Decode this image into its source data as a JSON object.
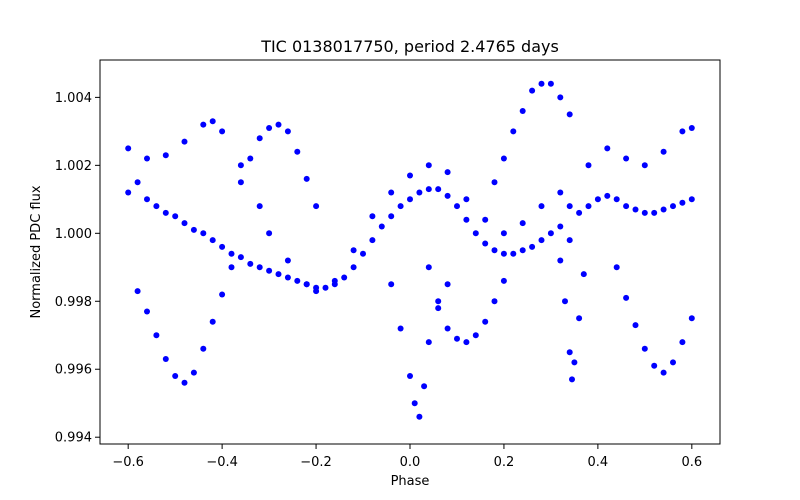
{
  "chart_data": {
    "type": "scatter",
    "title": "TIC 0138017750, period 2.4765 days",
    "xlabel": "Phase",
    "ylabel": "Normalized PDC flux",
    "xlim": [
      -0.66,
      0.66
    ],
    "ylim": [
      0.9938,
      1.0051
    ],
    "xticks": [
      -0.6,
      -0.4,
      -0.2,
      0.0,
      0.2,
      0.4,
      0.6
    ],
    "xtick_labels": [
      "−0.6",
      "−0.4",
      "−0.2",
      "0.0",
      "0.2",
      "0.4",
      "0.6"
    ],
    "yticks": [
      0.994,
      0.996,
      0.998,
      1.0,
      1.002,
      1.004
    ],
    "ytick_labels": [
      "0.994",
      "0.996",
      "0.998",
      "1.000",
      "1.002",
      "1.004"
    ],
    "marker_color": "#0000ff",
    "series": [
      {
        "name": "main-band",
        "points": [
          [
            -0.6,
            1.0012
          ],
          [
            -0.58,
            1.0015
          ],
          [
            -0.56,
            1.001
          ],
          [
            -0.54,
            1.0008
          ],
          [
            -0.52,
            1.0006
          ],
          [
            -0.5,
            1.0005
          ],
          [
            -0.48,
            1.0003
          ],
          [
            -0.46,
            1.0001
          ],
          [
            -0.44,
            1.0
          ],
          [
            -0.42,
            0.9998
          ],
          [
            -0.4,
            0.9996
          ],
          [
            -0.38,
            0.9994
          ],
          [
            -0.36,
            0.9993
          ],
          [
            -0.34,
            0.9991
          ],
          [
            -0.32,
            0.999
          ],
          [
            -0.3,
            0.9989
          ],
          [
            -0.28,
            0.9988
          ],
          [
            -0.26,
            0.9987
          ],
          [
            -0.24,
            0.9986
          ],
          [
            -0.22,
            0.9985
          ],
          [
            -0.2,
            0.9984
          ],
          [
            -0.18,
            0.9984
          ],
          [
            -0.16,
            0.9985
          ],
          [
            -0.14,
            0.9987
          ],
          [
            -0.12,
            0.999
          ],
          [
            -0.1,
            0.9994
          ],
          [
            -0.08,
            0.9998
          ],
          [
            -0.06,
            1.0002
          ],
          [
            -0.04,
            1.0005
          ],
          [
            -0.02,
            1.0008
          ],
          [
            0.0,
            1.001
          ],
          [
            0.02,
            1.0012
          ],
          [
            0.04,
            1.0013
          ],
          [
            0.06,
            1.0013
          ],
          [
            0.08,
            1.0011
          ],
          [
            0.1,
            1.0008
          ],
          [
            0.12,
            1.0004
          ],
          [
            0.14,
            1.0
          ],
          [
            0.16,
            0.9997
          ],
          [
            0.18,
            0.9995
          ],
          [
            0.2,
            0.9994
          ],
          [
            0.22,
            0.9994
          ],
          [
            0.24,
            0.9995
          ],
          [
            0.26,
            0.9996
          ],
          [
            0.28,
            0.9998
          ],
          [
            0.3,
            1.0
          ],
          [
            0.32,
            1.0002
          ],
          [
            0.34,
            0.9998
          ],
          [
            0.36,
            1.0006
          ],
          [
            0.38,
            1.0008
          ],
          [
            0.4,
            1.001
          ],
          [
            0.42,
            1.0011
          ],
          [
            0.44,
            1.001
          ],
          [
            0.46,
            1.0008
          ],
          [
            0.48,
            1.0007
          ],
          [
            0.5,
            1.0006
          ],
          [
            0.52,
            1.0006
          ],
          [
            0.54,
            1.0007
          ],
          [
            0.56,
            1.0008
          ],
          [
            0.58,
            1.0009
          ],
          [
            0.6,
            1.001
          ]
        ]
      },
      {
        "name": "upper-band",
        "points": [
          [
            -0.6,
            1.0025
          ],
          [
            -0.56,
            1.0022
          ],
          [
            -0.52,
            1.0023
          ],
          [
            -0.48,
            1.0027
          ],
          [
            -0.44,
            1.0032
          ],
          [
            -0.42,
            1.0033
          ],
          [
            -0.4,
            1.003
          ],
          [
            -0.36,
            1.002
          ],
          [
            -0.32,
            1.0008
          ],
          [
            -0.3,
            1.0
          ],
          [
            -0.26,
            0.9992
          ],
          [
            -0.22,
            0.9985
          ],
          [
            -0.2,
            0.9983
          ],
          [
            -0.16,
            0.9986
          ],
          [
            -0.12,
            0.9995
          ],
          [
            -0.08,
            1.0005
          ],
          [
            -0.04,
            1.0012
          ],
          [
            0.0,
            1.0017
          ],
          [
            0.04,
            1.002
          ],
          [
            0.08,
            1.0018
          ],
          [
            0.12,
            1.001
          ],
          [
            0.16,
            1.0004
          ],
          [
            0.2,
            1.0
          ],
          [
            0.24,
            1.0003
          ],
          [
            0.28,
            1.0008
          ],
          [
            0.32,
            1.0012
          ],
          [
            0.34,
            1.0008
          ],
          [
            0.38,
            1.002
          ],
          [
            0.42,
            1.0025
          ],
          [
            0.46,
            1.0022
          ],
          [
            0.5,
            1.002
          ],
          [
            0.54,
            1.0024
          ],
          [
            0.58,
            1.003
          ],
          [
            0.6,
            1.0031
          ]
        ]
      },
      {
        "name": "lower-arc-left",
        "points": [
          [
            -0.58,
            0.9983
          ],
          [
            -0.56,
            0.9977
          ],
          [
            -0.54,
            0.997
          ],
          [
            -0.52,
            0.9963
          ],
          [
            -0.5,
            0.9958
          ],
          [
            -0.48,
            0.9956
          ],
          [
            -0.46,
            0.9959
          ],
          [
            -0.44,
            0.9966
          ],
          [
            -0.42,
            0.9974
          ],
          [
            -0.4,
            0.9982
          ],
          [
            -0.38,
            0.999
          ]
        ]
      },
      {
        "name": "upper-arc-left",
        "points": [
          [
            -0.36,
            1.0015
          ],
          [
            -0.34,
            1.0022
          ],
          [
            -0.32,
            1.0028
          ],
          [
            -0.3,
            1.0031
          ],
          [
            -0.28,
            1.0032
          ],
          [
            -0.26,
            1.003
          ],
          [
            -0.24,
            1.0024
          ],
          [
            -0.22,
            1.0016
          ],
          [
            -0.2,
            1.0008
          ]
        ]
      },
      {
        "name": "dip-center",
        "points": [
          [
            -0.04,
            0.9985
          ],
          [
            -0.02,
            0.9972
          ],
          [
            0.0,
            0.9958
          ],
          [
            0.01,
            0.995
          ],
          [
            0.02,
            0.9946
          ],
          [
            0.03,
            0.9955
          ],
          [
            0.04,
            0.9968
          ],
          [
            0.06,
            0.9978
          ],
          [
            0.08,
            0.9985
          ]
        ]
      },
      {
        "name": "lower-arc-center",
        "points": [
          [
            0.04,
            0.999
          ],
          [
            0.06,
            0.998
          ],
          [
            0.08,
            0.9972
          ],
          [
            0.1,
            0.9969
          ],
          [
            0.12,
            0.9968
          ],
          [
            0.14,
            0.997
          ],
          [
            0.16,
            0.9974
          ],
          [
            0.18,
            0.998
          ],
          [
            0.2,
            0.9986
          ]
        ]
      },
      {
        "name": "upper-arc-right",
        "points": [
          [
            0.18,
            1.0015
          ],
          [
            0.2,
            1.0022
          ],
          [
            0.22,
            1.003
          ],
          [
            0.24,
            1.0036
          ],
          [
            0.26,
            1.0042
          ],
          [
            0.28,
            1.0044
          ],
          [
            0.3,
            1.0044
          ],
          [
            0.32,
            1.004
          ],
          [
            0.34,
            1.0035
          ]
        ]
      },
      {
        "name": "dip-right",
        "points": [
          [
            0.32,
            0.9992
          ],
          [
            0.33,
            0.998
          ],
          [
            0.34,
            0.9965
          ],
          [
            0.345,
            0.9957
          ],
          [
            0.35,
            0.9962
          ],
          [
            0.36,
            0.9975
          ],
          [
            0.37,
            0.9988
          ]
        ]
      },
      {
        "name": "lower-arc-right",
        "points": [
          [
            0.44,
            0.999
          ],
          [
            0.46,
            0.9981
          ],
          [
            0.48,
            0.9973
          ],
          [
            0.5,
            0.9966
          ],
          [
            0.52,
            0.9961
          ],
          [
            0.54,
            0.9959
          ],
          [
            0.56,
            0.9962
          ],
          [
            0.58,
            0.9968
          ],
          [
            0.6,
            0.9975
          ]
        ]
      }
    ]
  }
}
